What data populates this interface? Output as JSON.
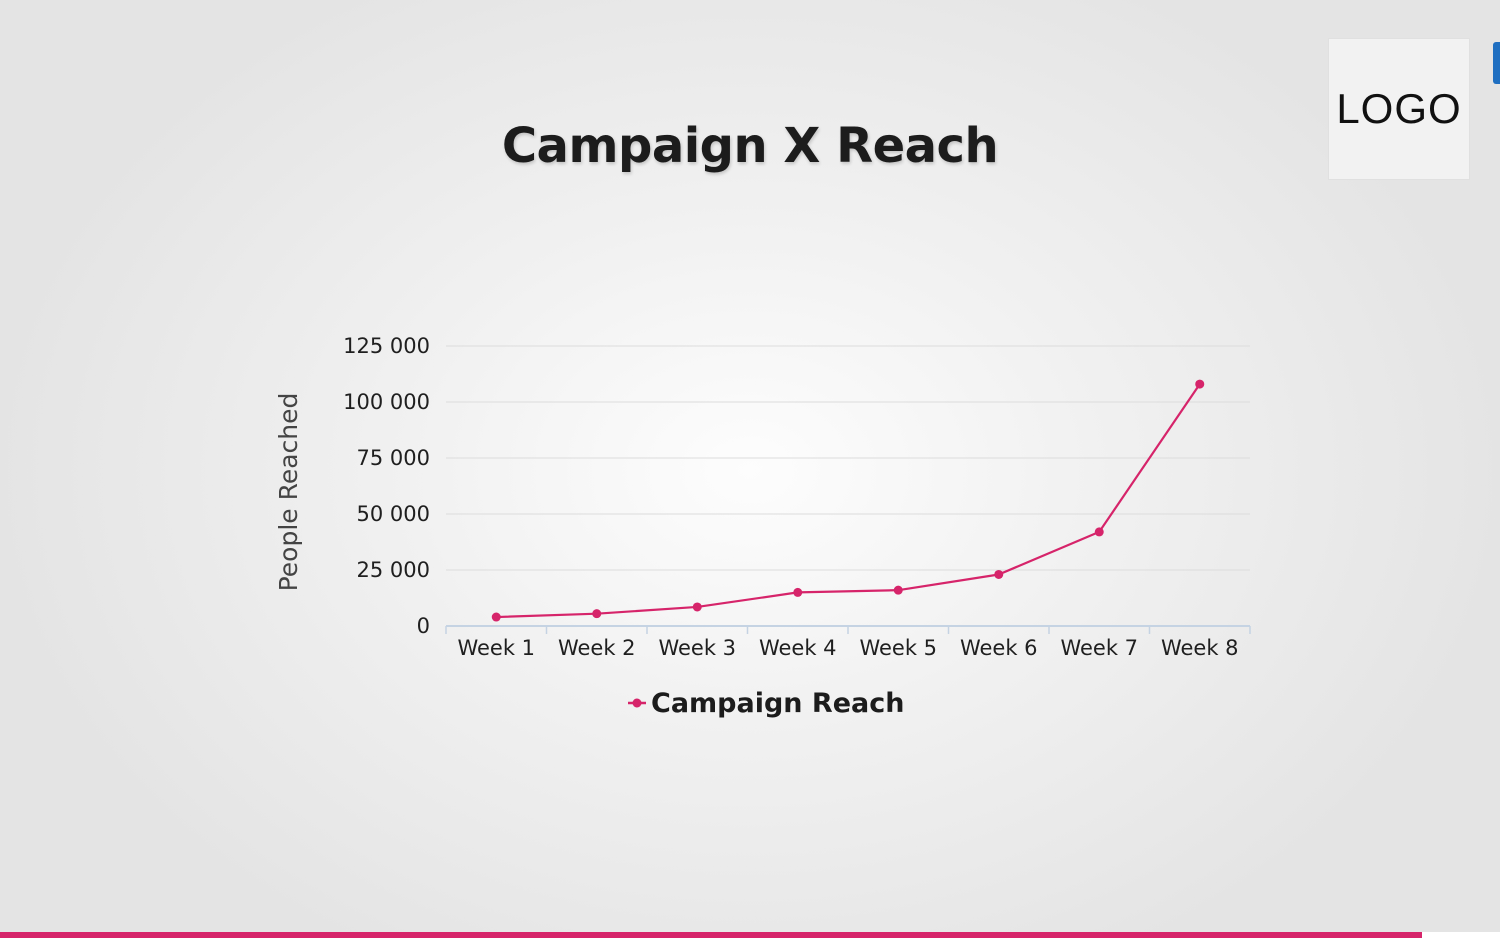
{
  "slide": {
    "title": "Campaign X Reach",
    "logo_text": "LOGO"
  },
  "colors": {
    "series": "#d6246a",
    "accent_bar": "#d6246a",
    "edge_tab": "#1f6fc1",
    "gridline": "#dcdcdc",
    "axis": "#c5d3e3"
  },
  "chart_data": {
    "type": "line",
    "title": "Campaign X Reach",
    "xlabel": "",
    "ylabel": "People Reached",
    "categories": [
      "Week 1",
      "Week 2",
      "Week 3",
      "Week 4",
      "Week 5",
      "Week 6",
      "Week 7",
      "Week 8"
    ],
    "series": [
      {
        "name": "Campaign Reach",
        "values": [
          4000,
          5500,
          8500,
          15000,
          16000,
          23000,
          42000,
          108000
        ]
      }
    ],
    "ylim": [
      0,
      125000
    ],
    "yticks": [
      0,
      25000,
      50000,
      75000,
      100000,
      125000
    ],
    "ytick_labels": [
      "0",
      "25 000",
      "50 000",
      "75 000",
      "100 000",
      "125 000"
    ],
    "grid": true,
    "legend": "bottom-center"
  }
}
